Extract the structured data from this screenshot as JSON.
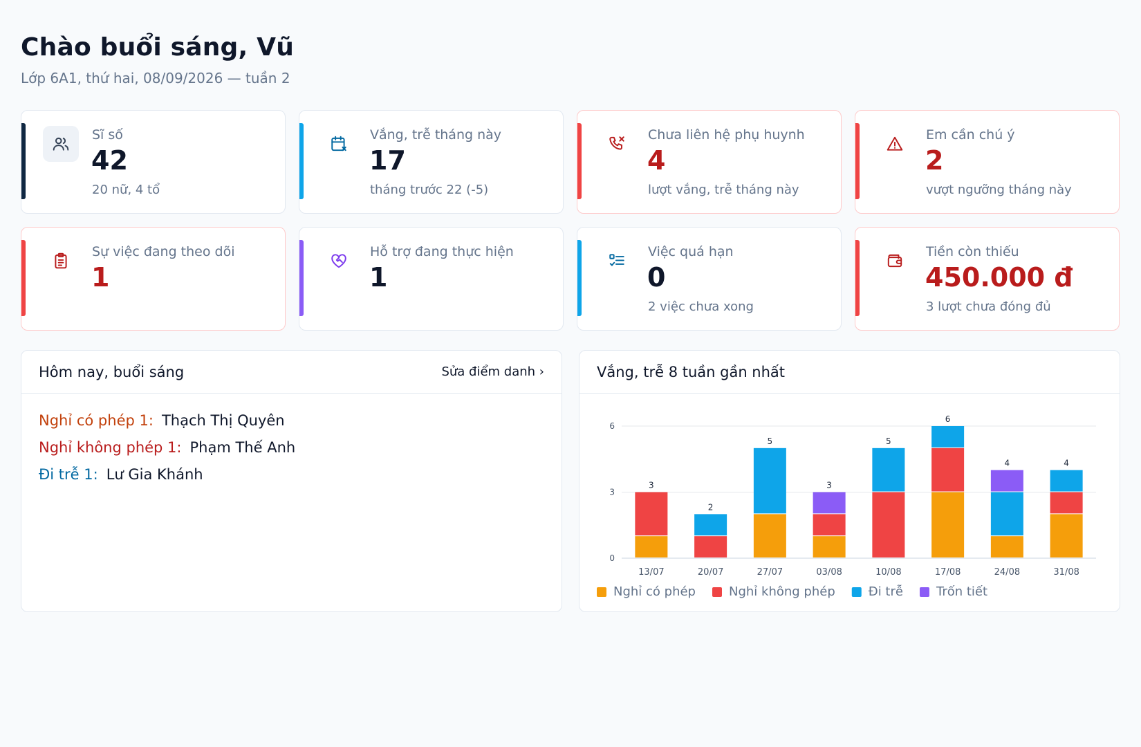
{
  "header": {
    "title": "Chào buổi sáng, Vũ",
    "subtitle": "Lớp 6A1, thứ hai, 08/09/2026 — tuần 2"
  },
  "stats": [
    {
      "label": "Sĩ số",
      "value": "42",
      "note": "20 nữ, 4 tổ",
      "icon": "users-icon",
      "accent": "#0f2742"
    },
    {
      "label": "Vắng, trễ tháng này",
      "value": "17",
      "note": "tháng trước 22 (-5)",
      "icon": "calendar-x-icon",
      "accent": "#0ea5e9"
    },
    {
      "label": "Chưa liên hệ phụ huynh",
      "value": "4",
      "note": "lượt vắng, trễ tháng này",
      "icon": "phone-missed-icon",
      "accent": "#ef4444"
    },
    {
      "label": "Em cần chú ý",
      "value": "2",
      "note": "vượt ngưỡng tháng này",
      "icon": "alert-triangle-icon",
      "accent": "#ef4444"
    },
    {
      "label": "Sự việc đang theo dõi",
      "value": "1",
      "note": "",
      "icon": "clipboard-icon",
      "accent": "#ef4444"
    },
    {
      "label": "Hỗ trợ đang thực hiện",
      "value": "1",
      "note": "",
      "icon": "heart-handshake-icon",
      "accent": "#8b5cf6"
    },
    {
      "label": "Việc quá hạn",
      "value": "0",
      "note": "2 việc chưa xong",
      "icon": "list-checks-icon",
      "accent": "#0ea5e9"
    },
    {
      "label": "Tiền còn thiếu",
      "value": "450.000 đ",
      "note": "3 lượt chưa đóng đủ",
      "icon": "wallet-icon",
      "accent": "#ef4444"
    }
  ],
  "today": {
    "title": "Hôm nay, buổi sáng",
    "edit_link": "Sửa điểm danh ›",
    "rows": [
      {
        "label": "Nghỉ có phép 1:",
        "names": "Thạch Thị Quyên",
        "color": "#c2410c"
      },
      {
        "label": "Nghỉ không phép 1:",
        "names": "Phạm Thế Anh",
        "color": "#b91c1c"
      },
      {
        "label": "Đi trễ 1:",
        "names": "Lư Gia Khánh",
        "color": "#0369a1"
      }
    ]
  },
  "chart_panel": {
    "title": "Vắng, trễ 8 tuần gần nhất"
  },
  "chart_data": {
    "type": "bar",
    "stacked": true,
    "categories": [
      "13/07",
      "20/07",
      "27/07",
      "03/08",
      "10/08",
      "17/08",
      "24/08",
      "31/08"
    ],
    "series": [
      {
        "name": "Nghỉ có phép",
        "color": "#f59e0b",
        "values": [
          1,
          0,
          2,
          1,
          0,
          3,
          1,
          2
        ]
      },
      {
        "name": "Nghỉ không phép",
        "color": "#ef4444",
        "values": [
          2,
          1,
          0,
          1,
          3,
          2,
          0,
          1
        ]
      },
      {
        "name": "Đi trễ",
        "color": "#0ea5e9",
        "values": [
          0,
          1,
          3,
          0,
          2,
          1,
          2,
          1
        ]
      },
      {
        "name": "Trốn tiết",
        "color": "#8b5cf6",
        "values": [
          0,
          0,
          0,
          1,
          0,
          0,
          1,
          0
        ]
      }
    ],
    "totals": [
      3,
      2,
      5,
      3,
      5,
      6,
      4,
      4
    ],
    "yticks": [
      0,
      3,
      6
    ],
    "ylim": [
      0,
      6
    ],
    "grid": true,
    "legend": "bottom-left"
  }
}
